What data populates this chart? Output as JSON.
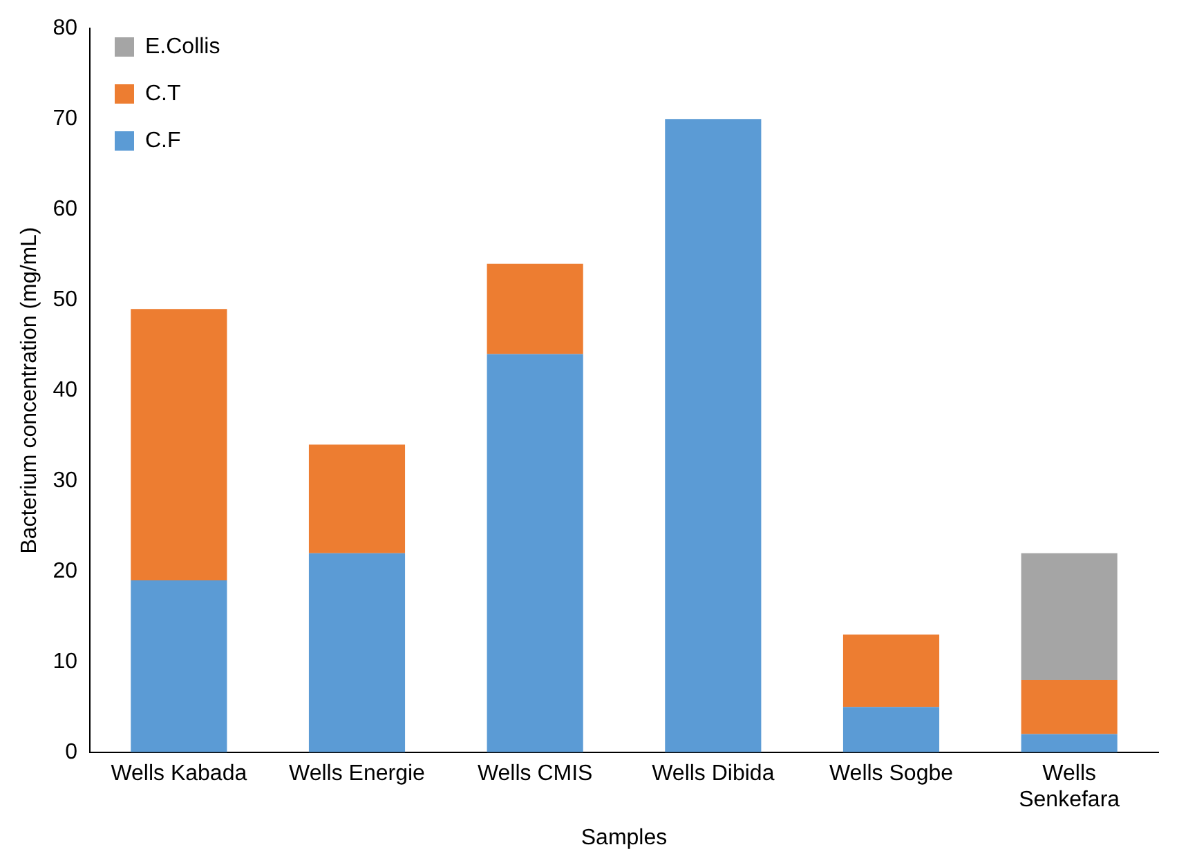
{
  "chart_data": {
    "type": "bar",
    "xlabel": "Samples",
    "ylabel": "Bacterium concentration (mg/mL)",
    "categories": [
      "Wells Kabada",
      "Wells Energie",
      "Wells CMIS",
      "Wells Dibida",
      "Wells Sogbe",
      "Wells Senkefara"
    ],
    "stacked": true,
    "series": [
      {
        "name": "C.F",
        "color": "#5b9bd5",
        "values": [
          19,
          22,
          44,
          70,
          5,
          2
        ]
      },
      {
        "name": "C.T",
        "color": "#ed7d31",
        "values": [
          30,
          12,
          10,
          null,
          8,
          6
        ]
      },
      {
        "name": "E.Collis",
        "color": "#a5a5a5",
        "values": [
          null,
          null,
          null,
          null,
          null,
          14
        ]
      }
    ],
    "ylim": [
      0,
      80
    ],
    "yticks": [
      0,
      10,
      20,
      30,
      40,
      50,
      60,
      70,
      80
    ],
    "grid": false,
    "legend": "top left"
  }
}
